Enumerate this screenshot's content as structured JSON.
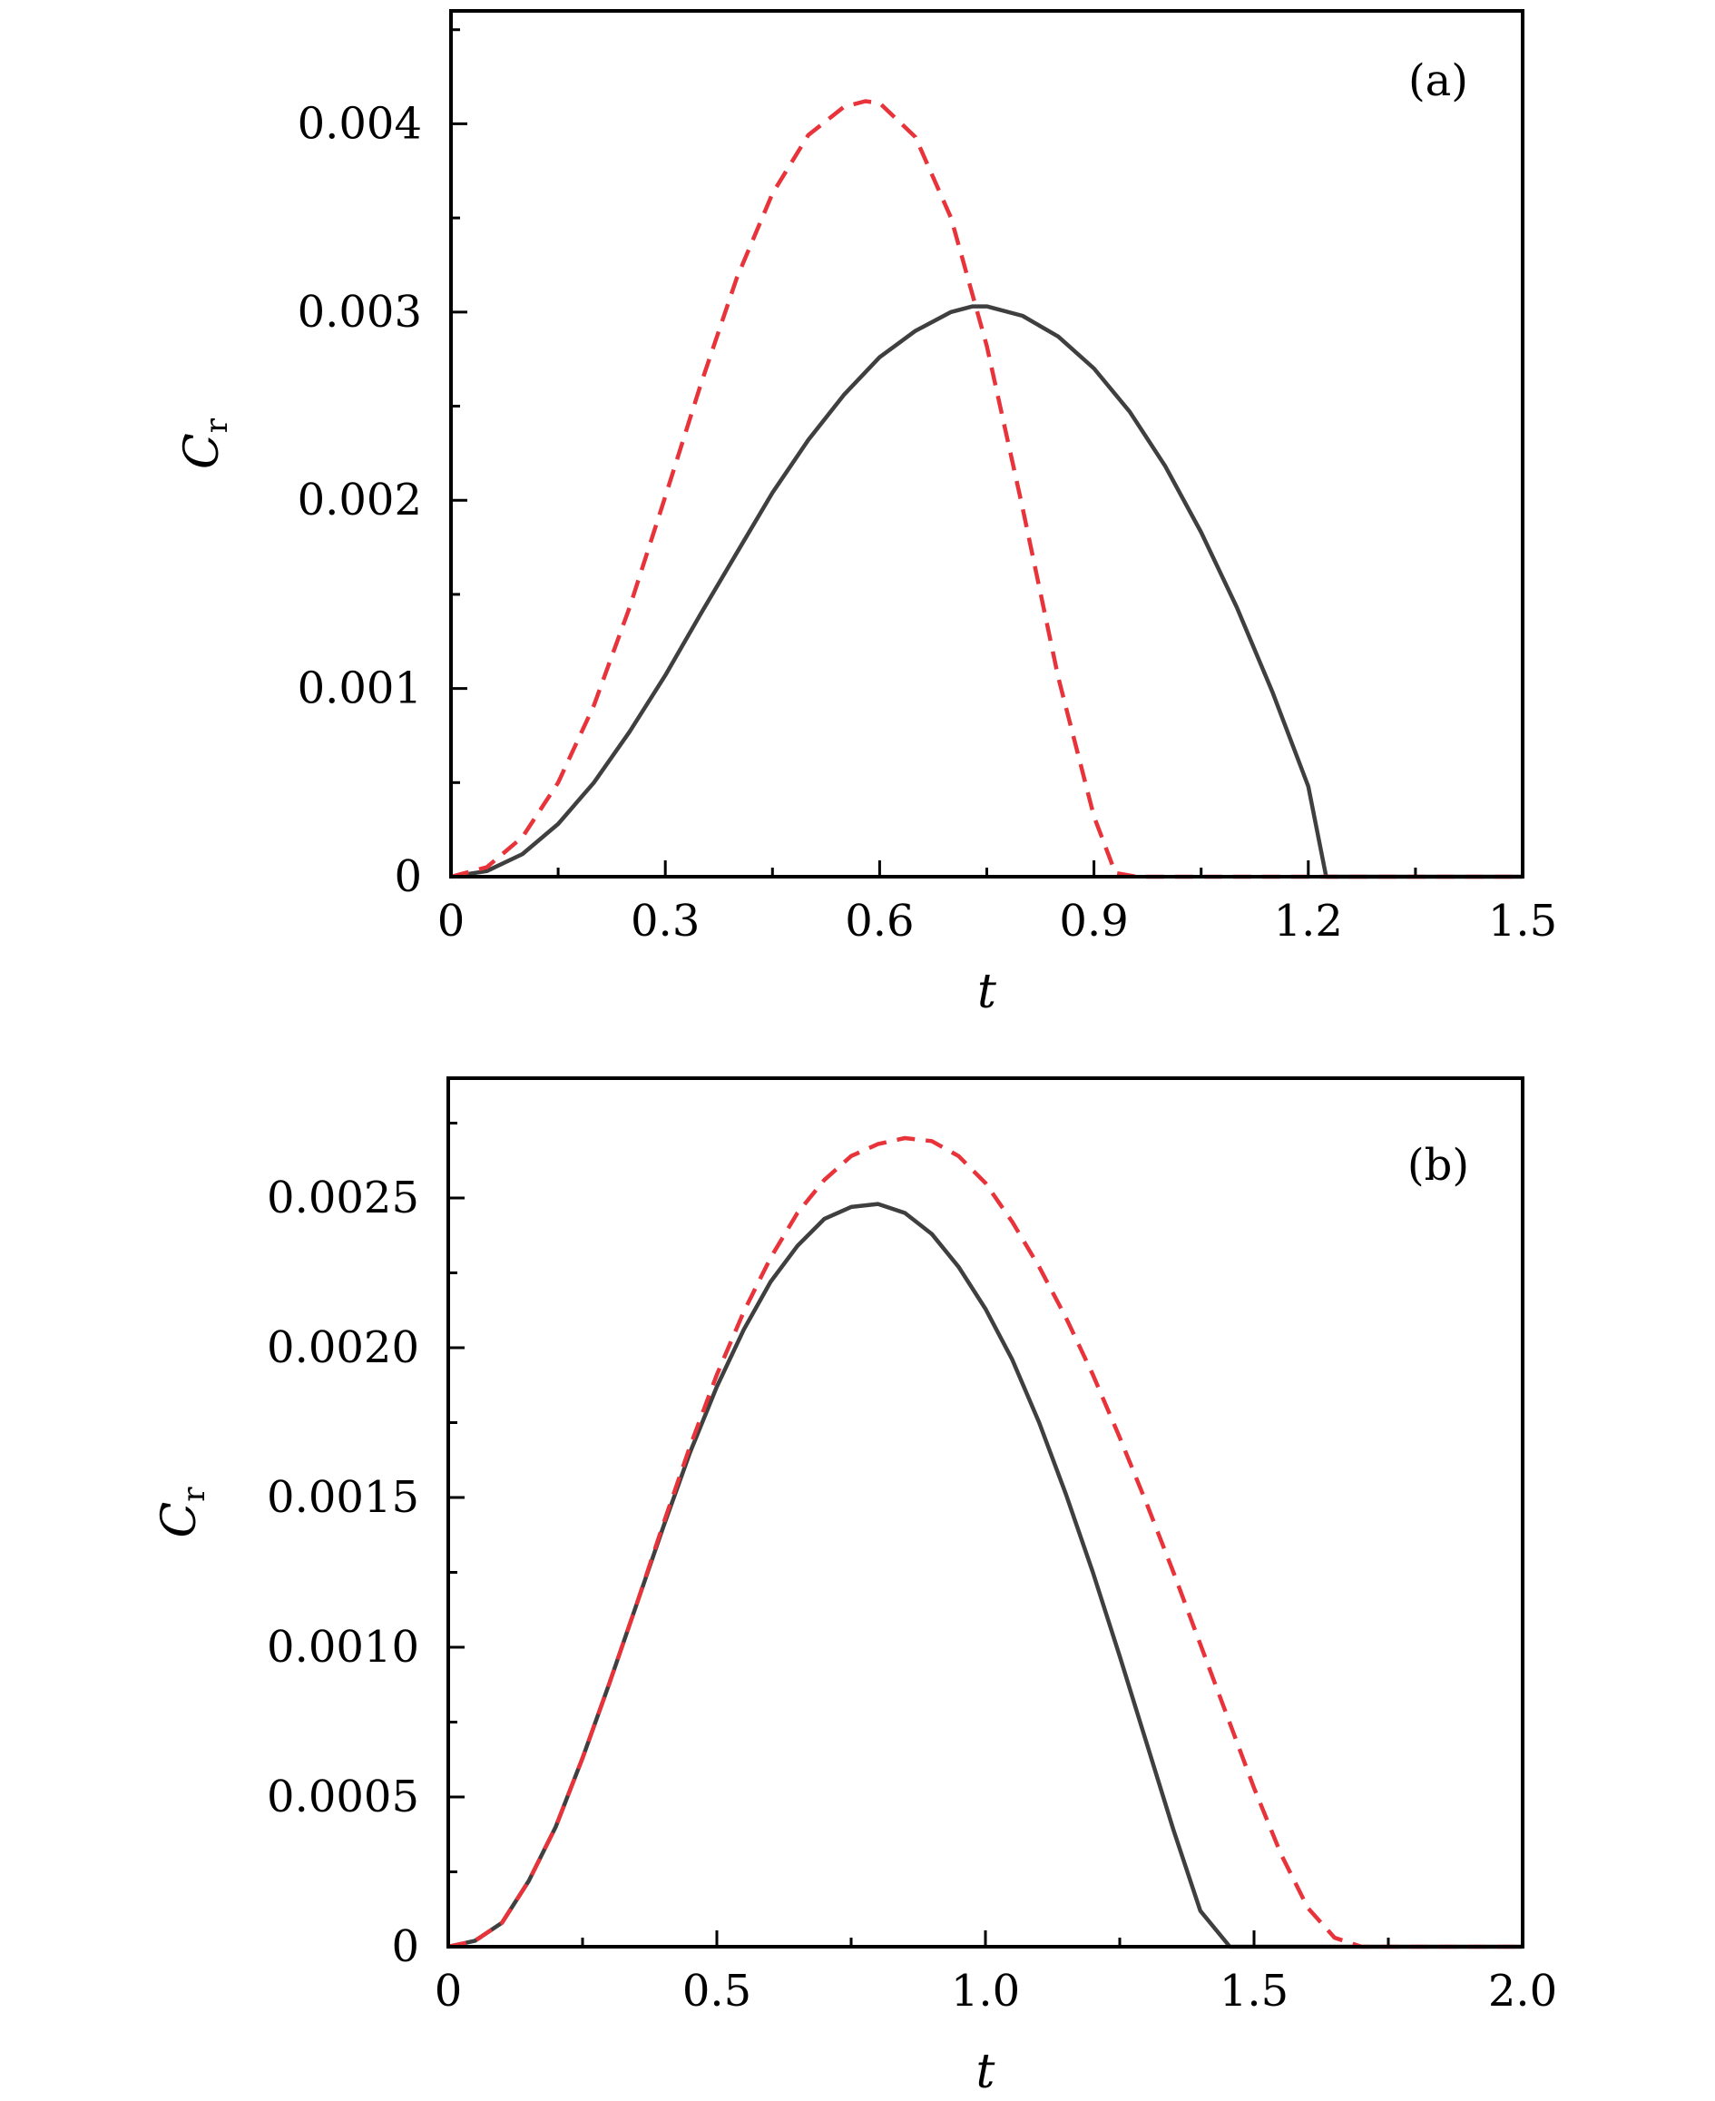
{
  "chart_data": [
    {
      "type": "line",
      "panel_label": "(a)",
      "xlabel": "t",
      "ylabel": "C",
      "ylabel_sub": "r",
      "xlim": [
        0,
        1.5
      ],
      "ylim": [
        0,
        0.0046
      ],
      "x_ticks": [
        0,
        0.3,
        0.6,
        0.9,
        1.2,
        1.5
      ],
      "x_tick_labels": [
        "0",
        "0.3",
        "0.6",
        "0.9",
        "1.2",
        "1.5"
      ],
      "y_ticks": [
        0,
        0.001,
        0.002,
        0.003,
        0.004
      ],
      "y_tick_labels": [
        "0",
        "0.001",
        "0.002",
        "0.003",
        "0.004"
      ],
      "series": [
        {
          "style": "solid",
          "color": "#3f3f3f",
          "x": [
            0,
            0.05,
            0.1,
            0.15,
            0.2,
            0.25,
            0.3,
            0.35,
            0.4,
            0.45,
            0.5,
            0.55,
            0.6,
            0.65,
            0.7,
            0.73,
            0.75,
            0.8,
            0.85,
            0.9,
            0.95,
            1.0,
            1.05,
            1.1,
            1.15,
            1.2,
            1.225,
            1.5
          ],
          "y": [
            0,
            3e-05,
            0.00012,
            0.00028,
            0.0005,
            0.00077,
            0.00107,
            0.0014,
            0.00172,
            0.00204,
            0.00232,
            0.00256,
            0.00276,
            0.0029,
            0.003,
            0.00303,
            0.00303,
            0.00298,
            0.00287,
            0.0027,
            0.00247,
            0.00218,
            0.00183,
            0.00143,
            0.00098,
            0.00048,
            0,
            0
          ]
        },
        {
          "style": "dashed",
          "color": "#e8333a",
          "x": [
            0,
            0.05,
            0.1,
            0.15,
            0.2,
            0.25,
            0.3,
            0.35,
            0.4,
            0.45,
            0.5,
            0.55,
            0.58,
            0.6,
            0.65,
            0.7,
            0.75,
            0.8,
            0.85,
            0.9,
            0.93,
            0.96,
            1.5
          ],
          "y": [
            0,
            5e-05,
            0.00021,
            0.0005,
            0.00091,
            0.00143,
            0.00202,
            0.00262,
            0.00318,
            0.00363,
            0.00394,
            0.00409,
            0.00412,
            0.00411,
            0.00393,
            0.0035,
            0.00282,
            0.00196,
            0.00106,
            0.00032,
            2e-05,
            0,
            0
          ]
        }
      ]
    },
    {
      "type": "line",
      "panel_label": "(b)",
      "xlabel": "t",
      "ylabel": "C",
      "ylabel_sub": "r",
      "xlim": [
        0,
        2.0
      ],
      "ylim": [
        0,
        0.0029
      ],
      "x_ticks": [
        0,
        0.5,
        1.0,
        1.5,
        2.0
      ],
      "x_tick_labels": [
        "0",
        "0.5",
        "1.0",
        "1.5",
        "2.0"
      ],
      "y_ticks": [
        0,
        0.0005,
        0.001,
        0.0015,
        0.002,
        0.0025
      ],
      "y_tick_labels": [
        "0",
        "0.0005",
        "0.0010",
        "0.0015",
        "0.0020",
        "0.0025"
      ],
      "series": [
        {
          "style": "solid",
          "color": "#3f3f3f",
          "x": [
            0,
            0.05,
            0.1,
            0.15,
            0.2,
            0.25,
            0.3,
            0.35,
            0.4,
            0.45,
            0.5,
            0.55,
            0.6,
            0.65,
            0.7,
            0.75,
            0.8,
            0.85,
            0.9,
            0.95,
            1.0,
            1.05,
            1.1,
            1.15,
            1.2,
            1.25,
            1.3,
            1.35,
            1.4,
            1.455,
            2.0
          ],
          "y": [
            0,
            2e-05,
            8e-05,
            0.00022,
            0.0004,
            0.00063,
            0.00088,
            0.00114,
            0.0014,
            0.00165,
            0.00187,
            0.00206,
            0.00222,
            0.00234,
            0.00243,
            0.00247,
            0.00248,
            0.00245,
            0.00238,
            0.00227,
            0.00213,
            0.00196,
            0.00175,
            0.00151,
            0.00125,
            0.00097,
            0.00068,
            0.00039,
            0.00012,
            0,
            0
          ]
        },
        {
          "style": "dashed",
          "color": "#e8333a",
          "x": [
            0,
            0.05,
            0.1,
            0.15,
            0.2,
            0.25,
            0.3,
            0.35,
            0.4,
            0.45,
            0.5,
            0.55,
            0.6,
            0.65,
            0.7,
            0.75,
            0.8,
            0.85,
            0.9,
            0.95,
            1.0,
            1.05,
            1.1,
            1.15,
            1.2,
            1.25,
            1.3,
            1.35,
            1.4,
            1.45,
            1.5,
            1.55,
            1.6,
            1.65,
            1.7,
            2.0
          ],
          "y": [
            0,
            2e-05,
            8e-05,
            0.00022,
            0.0004,
            0.00063,
            0.00088,
            0.00114,
            0.00141,
            0.00167,
            0.00191,
            0.00212,
            0.0023,
            0.00245,
            0.00256,
            0.00264,
            0.00268,
            0.0027,
            0.00269,
            0.00264,
            0.00255,
            0.00242,
            0.00227,
            0.0021,
            0.00191,
            0.0017,
            0.00148,
            0.00125,
            0.00101,
            0.00077,
            0.00053,
            0.00031,
            0.00013,
            3e-05,
            0,
            0
          ]
        }
      ]
    }
  ]
}
